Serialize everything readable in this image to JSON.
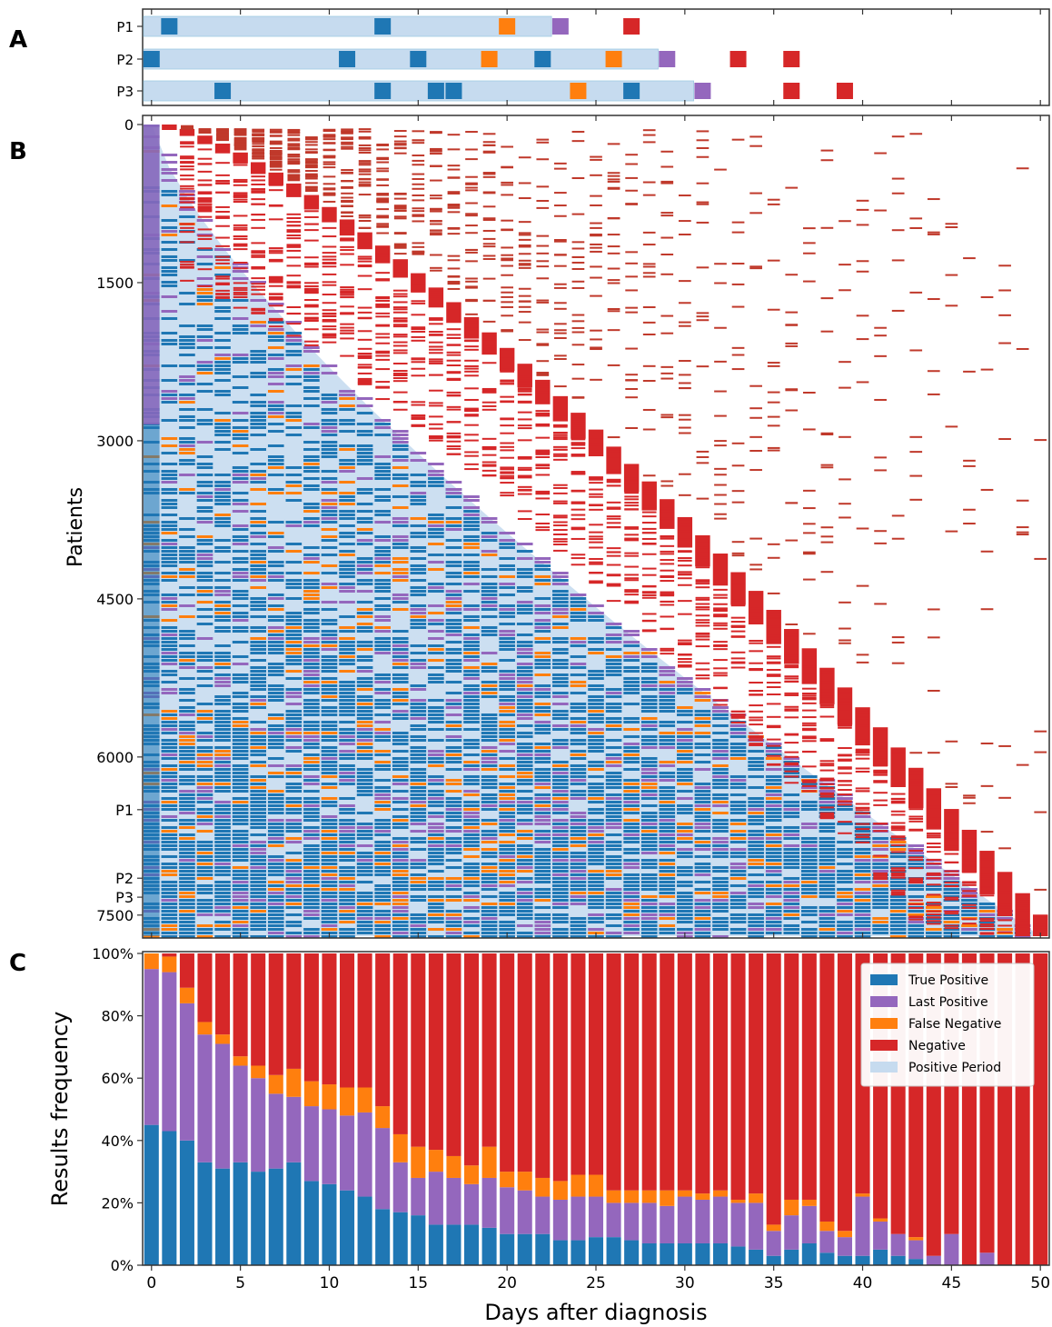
{
  "panels": {
    "a_label": "A",
    "b_label": "B",
    "c_label": "C"
  },
  "colors": {
    "true_positive": "#1f77b4",
    "last_positive": "#9467bd",
    "false_negative": "#ff7f0e",
    "negative": "#d62728",
    "positive_period": "#c6dbef",
    "axis": "#333333"
  },
  "chart_data": [
    {
      "panel": "A",
      "type": "timeline",
      "patients": [
        {
          "name": "P1",
          "positive_period": [
            0,
            22.5
          ],
          "true_positive": [
            1,
            13
          ],
          "false_negative": [
            20
          ],
          "last_positive": [
            23
          ],
          "negative": [
            27
          ]
        },
        {
          "name": "P2",
          "positive_period": [
            0,
            28.5
          ],
          "true_positive": [
            0,
            11,
            15,
            22
          ],
          "false_negative": [
            19,
            26
          ],
          "last_positive": [
            29
          ],
          "negative": [
            33,
            36
          ]
        },
        {
          "name": "P3",
          "positive_period": [
            0,
            30.5
          ],
          "true_positive": [
            4,
            13,
            16,
            17,
            27
          ],
          "false_negative": [
            24
          ],
          "last_positive": [
            31
          ],
          "negative": [
            36,
            39
          ]
        }
      ],
      "xlim": [
        -0.5,
        50.5
      ]
    },
    {
      "panel": "B",
      "type": "heatmap",
      "ylabel": "Patients",
      "y_ticks": [
        "0",
        "1500",
        "3000",
        "4500",
        "6000",
        "7500"
      ],
      "y_tick_values": [
        0,
        1500,
        3000,
        4500,
        6000,
        7500
      ],
      "highlight_ticks": [
        {
          "label": "P1",
          "value": 6500
        },
        {
          "label": "P2",
          "value": 7150
        },
        {
          "label": "P3",
          "value": 7330
        }
      ],
      "n_patients": 7700,
      "xlim": [
        -0.5,
        50.5
      ]
    },
    {
      "panel": "C",
      "type": "bar",
      "stacked": true,
      "xlabel": "Days after diagnosis",
      "ylabel": "Results frequency",
      "x_ticks": [
        "0",
        "5",
        "10",
        "15",
        "20",
        "25",
        "30",
        "35",
        "40",
        "45",
        "50"
      ],
      "y_ticks": [
        "0%",
        "20%",
        "40%",
        "60%",
        "80%",
        "100%"
      ],
      "ylim": [
        0,
        100
      ],
      "xlim": [
        -0.5,
        50.5
      ],
      "days": [
        0,
        1,
        2,
        3,
        4,
        5,
        6,
        7,
        8,
        9,
        10,
        11,
        12,
        13,
        14,
        15,
        16,
        17,
        18,
        19,
        20,
        21,
        22,
        23,
        24,
        25,
        26,
        27,
        28,
        29,
        30,
        31,
        32,
        33,
        34,
        35,
        36,
        37,
        38,
        39,
        40,
        41,
        42,
        43,
        44,
        45,
        46,
        47,
        48,
        49,
        50
      ],
      "series": [
        {
          "name": "True Positive",
          "key": "true_positive",
          "values": [
            45,
            43,
            40,
            33,
            31,
            33,
            30,
            31,
            33,
            27,
            26,
            24,
            22,
            18,
            17,
            16,
            13,
            13,
            13,
            12,
            10,
            10,
            10,
            8,
            8,
            9,
            9,
            8,
            7,
            7,
            7,
            7,
            7,
            6,
            5,
            3,
            5,
            7,
            4,
            3,
            3,
            5,
            3,
            2,
            0,
            0,
            0,
            0,
            0,
            0,
            0
          ]
        },
        {
          "name": "Last Positive",
          "key": "last_positive",
          "values": [
            50,
            51,
            44,
            41,
            40,
            31,
            30,
            24,
            21,
            24,
            24,
            24,
            27,
            26,
            16,
            12,
            17,
            15,
            13,
            16,
            15,
            14,
            12,
            13,
            14,
            13,
            11,
            12,
            13,
            12,
            15,
            14,
            15,
            14,
            15,
            8,
            11,
            12,
            7,
            6,
            19,
            9,
            7,
            6,
            3,
            10,
            0,
            4,
            0,
            0,
            0
          ]
        },
        {
          "name": "False Negative",
          "key": "false_negative",
          "values": [
            5,
            5,
            5,
            4,
            3,
            3,
            4,
            6,
            9,
            8,
            8,
            9,
            8,
            7,
            9,
            10,
            7,
            7,
            6,
            10,
            5,
            6,
            6,
            6,
            7,
            7,
            4,
            4,
            4,
            5,
            2,
            2,
            2,
            1,
            3,
            2,
            5,
            2,
            3,
            2,
            1,
            1,
            0,
            1,
            0,
            0,
            0,
            0,
            0,
            0,
            0
          ]
        },
        {
          "name": "Negative",
          "key": "negative",
          "values": [
            0,
            1,
            11,
            22,
            26,
            33,
            36,
            39,
            37,
            41,
            42,
            43,
            43,
            49,
            58,
            62,
            63,
            65,
            68,
            62,
            70,
            70,
            72,
            73,
            71,
            71,
            76,
            76,
            76,
            76,
            76,
            77,
            76,
            79,
            77,
            87,
            79,
            79,
            86,
            89,
            77,
            85,
            90,
            91,
            97,
            90,
            100,
            96,
            100,
            100,
            100
          ]
        }
      ],
      "legend": {
        "position": "top-right",
        "entries": [
          "True Positive",
          "Last Positive",
          "False Negative",
          "Negative",
          "Positive Period"
        ]
      }
    }
  ]
}
